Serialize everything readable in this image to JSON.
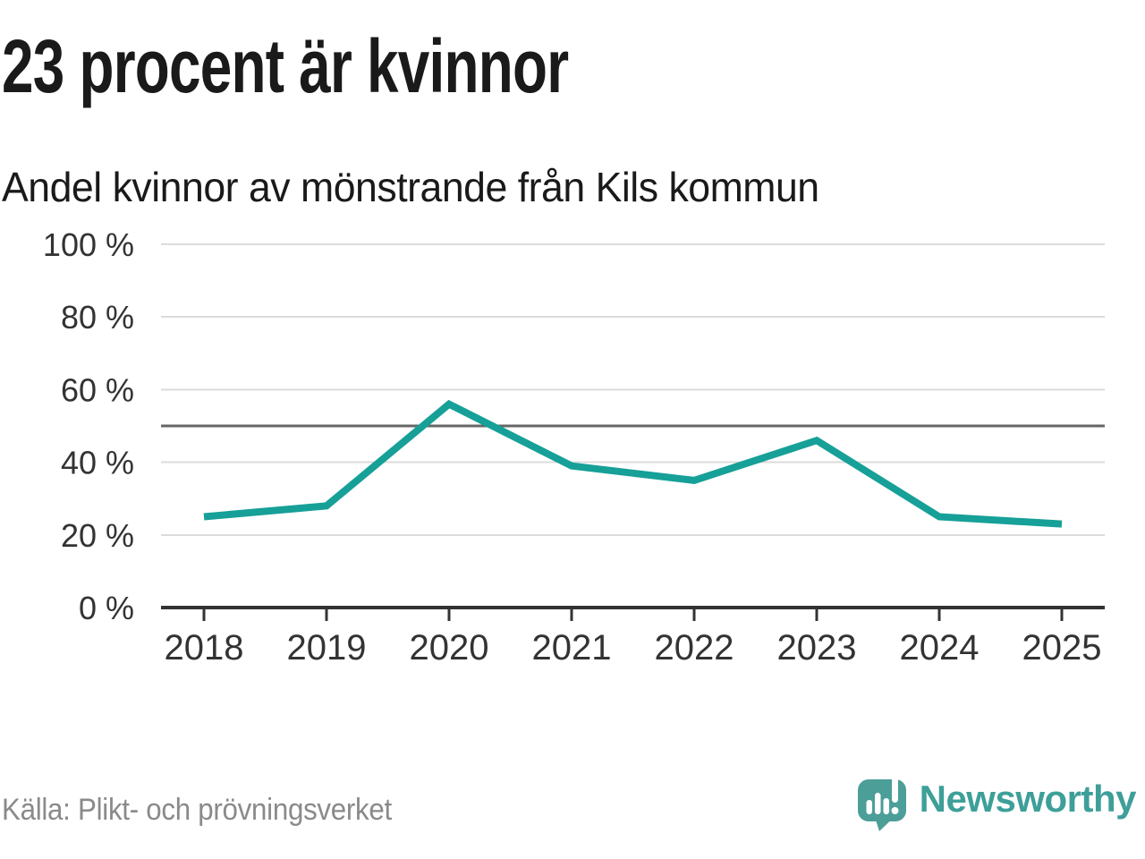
{
  "header": {
    "title": "23 procent är kvinnor",
    "subtitle": "Andel kvinnor av mönstrande från Kils kommun"
  },
  "chart_data": {
    "type": "line",
    "title": "23 procent är kvinnor",
    "subtitle": "Andel kvinnor av mönstrande från Kils kommun",
    "categories": [
      "2018",
      "2019",
      "2020",
      "2021",
      "2022",
      "2023",
      "2024",
      "2025"
    ],
    "series": [
      {
        "name": "Andel kvinnor av mönstrande",
        "values": [
          25,
          28,
          56,
          39,
          35,
          46,
          25,
          23
        ]
      }
    ],
    "unit": "%",
    "ylim": [
      0,
      100
    ],
    "yticks": [
      0,
      20,
      40,
      60,
      80,
      100
    ],
    "ytick_labels": [
      "0 %",
      "20 %",
      "40 %",
      "60 %",
      "80 %",
      "100 %"
    ],
    "reference_line": 50,
    "grid": true,
    "legend": "none",
    "xlabel": "",
    "ylabel": ""
  },
  "footer": {
    "source": "Källa: Plikt- och prövningsverket",
    "brand": "Newsworthy"
  },
  "colors": {
    "accent_line": "#16A098",
    "brand": "#3E9F99",
    "brand_icon": "#4C9E98",
    "grid": "#DBDBDB",
    "reference_line": "#666666",
    "axis": "#333333",
    "tick_label": "#333333",
    "title_text": "#1a1a1a",
    "source_text": "#8a8a8a"
  }
}
